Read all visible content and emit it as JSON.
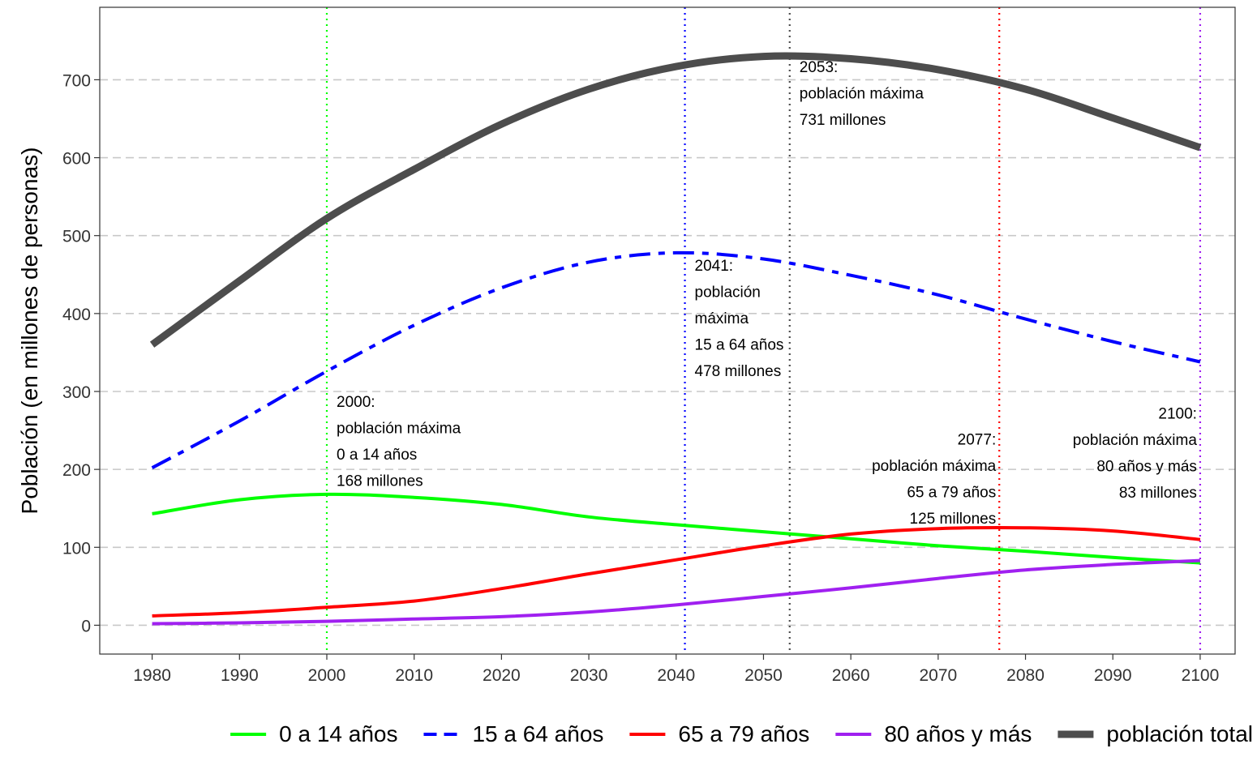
{
  "chart_data": {
    "type": "line",
    "title": "",
    "xlabel": "",
    "ylabel": "Población (en millones de personas)",
    "xlim": [
      1974,
      2104
    ],
    "ylim": [
      -37,
      793
    ],
    "x_ticks": [
      "1980",
      "1990",
      "2000",
      "2010",
      "2020",
      "2030",
      "2040",
      "2050",
      "2060",
      "2070",
      "2080",
      "2090",
      "2100"
    ],
    "y_ticks": [
      "0",
      "100",
      "200",
      "300",
      "400",
      "500",
      "600",
      "700"
    ],
    "grid": "horizontal dashed",
    "legend_position": "bottom",
    "series": [
      {
        "name": "0 a 14 años",
        "color": "#00ff00",
        "style": "solid",
        "x": [
          1980,
          1990,
          2000,
          2010,
          2020,
          2030,
          2040,
          2050,
          2060,
          2070,
          2080,
          2090,
          2100
        ],
        "y": [
          143,
          161,
          168,
          164,
          155,
          139,
          129,
          120,
          111,
          102,
          95,
          87,
          80
        ]
      },
      {
        "name": "15 a 64 años",
        "color": "#0000ff",
        "style": "dashdot",
        "x": [
          1980,
          1990,
          2000,
          2010,
          2020,
          2030,
          2040,
          2050,
          2060,
          2070,
          2080,
          2090,
          2100
        ],
        "y": [
          202,
          262,
          326,
          385,
          433,
          466,
          478,
          470,
          449,
          424,
          393,
          364,
          338
        ]
      },
      {
        "name": "65 a 79 años",
        "color": "#ff0000",
        "style": "solid",
        "x": [
          1980,
          1990,
          2000,
          2010,
          2020,
          2030,
          2040,
          2050,
          2060,
          2070,
          2080,
          2090,
          2100
        ],
        "y": [
          12,
          16,
          23,
          31,
          47,
          66,
          84,
          102,
          117,
          124,
          125,
          121,
          110
        ]
      },
      {
        "name": "80 años y más",
        "color": "#a020f0",
        "style": "solid",
        "x": [
          1980,
          1990,
          2000,
          2010,
          2020,
          2030,
          2040,
          2050,
          2060,
          2070,
          2080,
          2090,
          2100
        ],
        "y": [
          2,
          3,
          5,
          8,
          11,
          17,
          26,
          37,
          48,
          60,
          71,
          78,
          83
        ]
      },
      {
        "name": "población total",
        "color": "#4d4d4d",
        "style": "solid-thick",
        "x": [
          1980,
          1990,
          2000,
          2010,
          2020,
          2030,
          2040,
          2050,
          2060,
          2070,
          2080,
          2090,
          2100
        ],
        "y": [
          360,
          442,
          522,
          585,
          643,
          688,
          717,
          730,
          727,
          713,
          688,
          651,
          613
        ]
      }
    ],
    "reference_lines": [
      {
        "x": 2000,
        "color": "#00ff00"
      },
      {
        "x": 2041,
        "color": "#0000ff"
      },
      {
        "x": 2053,
        "color": "#4d4d4d"
      },
      {
        "x": 2077,
        "color": "#ff0000"
      },
      {
        "x": 2100,
        "color": "#a020f0"
      }
    ],
    "annotations": [
      {
        "x": 2000,
        "y": 280,
        "anchor": "start",
        "lines": [
          "2000:",
          "población máxima",
          "0 a 14 años",
          "168 millones"
        ]
      },
      {
        "x": 2041,
        "y": 455,
        "anchor": "start",
        "lines": [
          "2041:",
          "población",
          "máxima",
          "15 a 64 años",
          "478 millones"
        ]
      },
      {
        "x": 2053,
        "y": 710,
        "anchor": "start",
        "lines": [
          "2053:",
          "población máxima",
          "731 millones"
        ]
      },
      {
        "x": 2077,
        "y": 232,
        "anchor": "end",
        "lines": [
          "2077:",
          "población máxima",
          "65 a 79 años",
          "125 millones"
        ]
      },
      {
        "x": 2100,
        "y": 265,
        "anchor": "end",
        "lines": [
          "2100:",
          "población máxima",
          "80 años y más",
          "83 millones"
        ]
      }
    ]
  }
}
